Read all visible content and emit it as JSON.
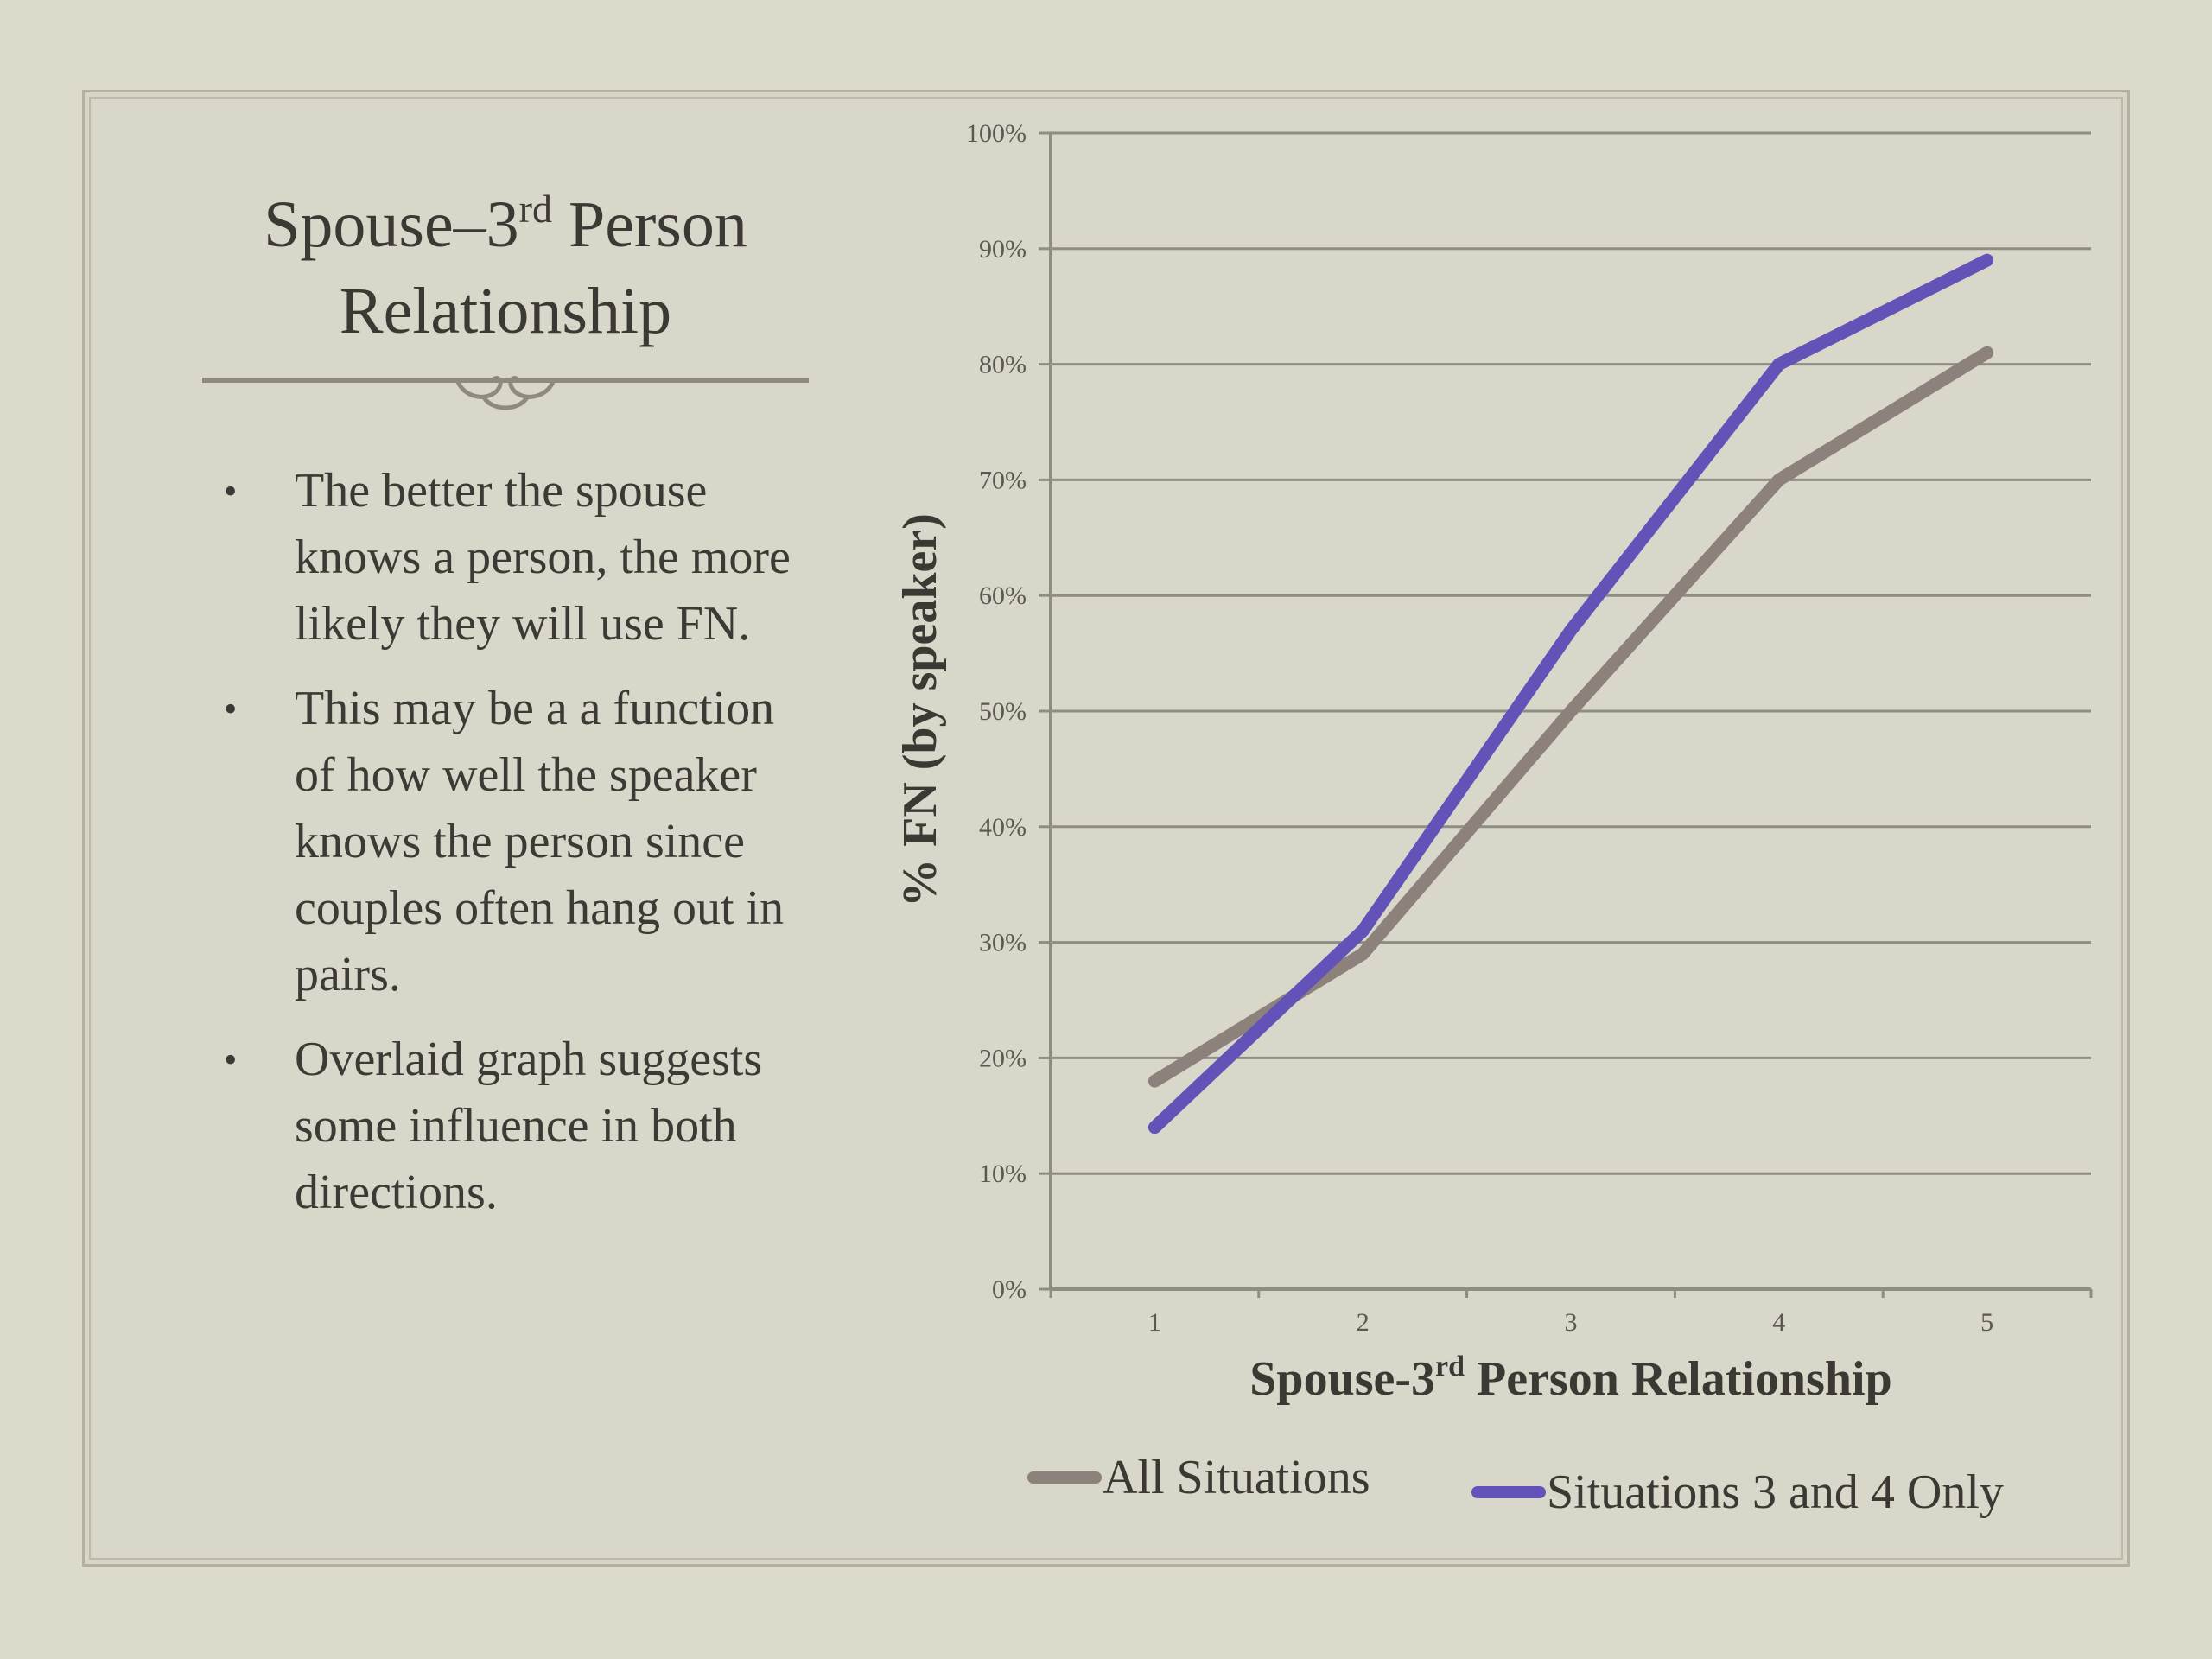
{
  "slide": {
    "title_part1": "Spouse–3",
    "title_sup": "rd",
    "title_part2": " Person",
    "title_line2": "Relationship",
    "bullets": [
      "The better the spouse knows a person, the more likely they will use FN.",
      "This may be a a function of how well the speaker knows the person since couples often hang out in pairs.",
      "Overlaid graph suggests some influence in both directions."
    ],
    "bullet_symbol": "•",
    "ornament_icon": "scroll-flourish"
  },
  "chart_data": {
    "type": "line",
    "x": [
      1,
      2,
      3,
      4,
      5
    ],
    "x_tick_labels": [
      "1",
      "2",
      "3",
      "4",
      "5"
    ],
    "y_tick_labels": [
      "0%",
      "10%",
      "20%",
      "30%",
      "40%",
      "50%",
      "60%",
      "70%",
      "80%",
      "90%",
      "100%"
    ],
    "ylim": [
      0,
      100
    ],
    "y_unit": "percent",
    "xlabel_main": "Spouse-3",
    "xlabel_sup": "rd",
    "xlabel_rest": " Person Relationship",
    "ylabel": "% FN (by speaker)",
    "grid": "horizontal",
    "legend_position": "bottom",
    "series": [
      {
        "name": "All Situations",
        "color": "#8c817b",
        "values": [
          18,
          29,
          50,
          70,
          81
        ]
      },
      {
        "name": "Situations 3 and 4 Only",
        "color": "#6353b8",
        "values": [
          14,
          31,
          57,
          80,
          89
        ]
      }
    ]
  }
}
